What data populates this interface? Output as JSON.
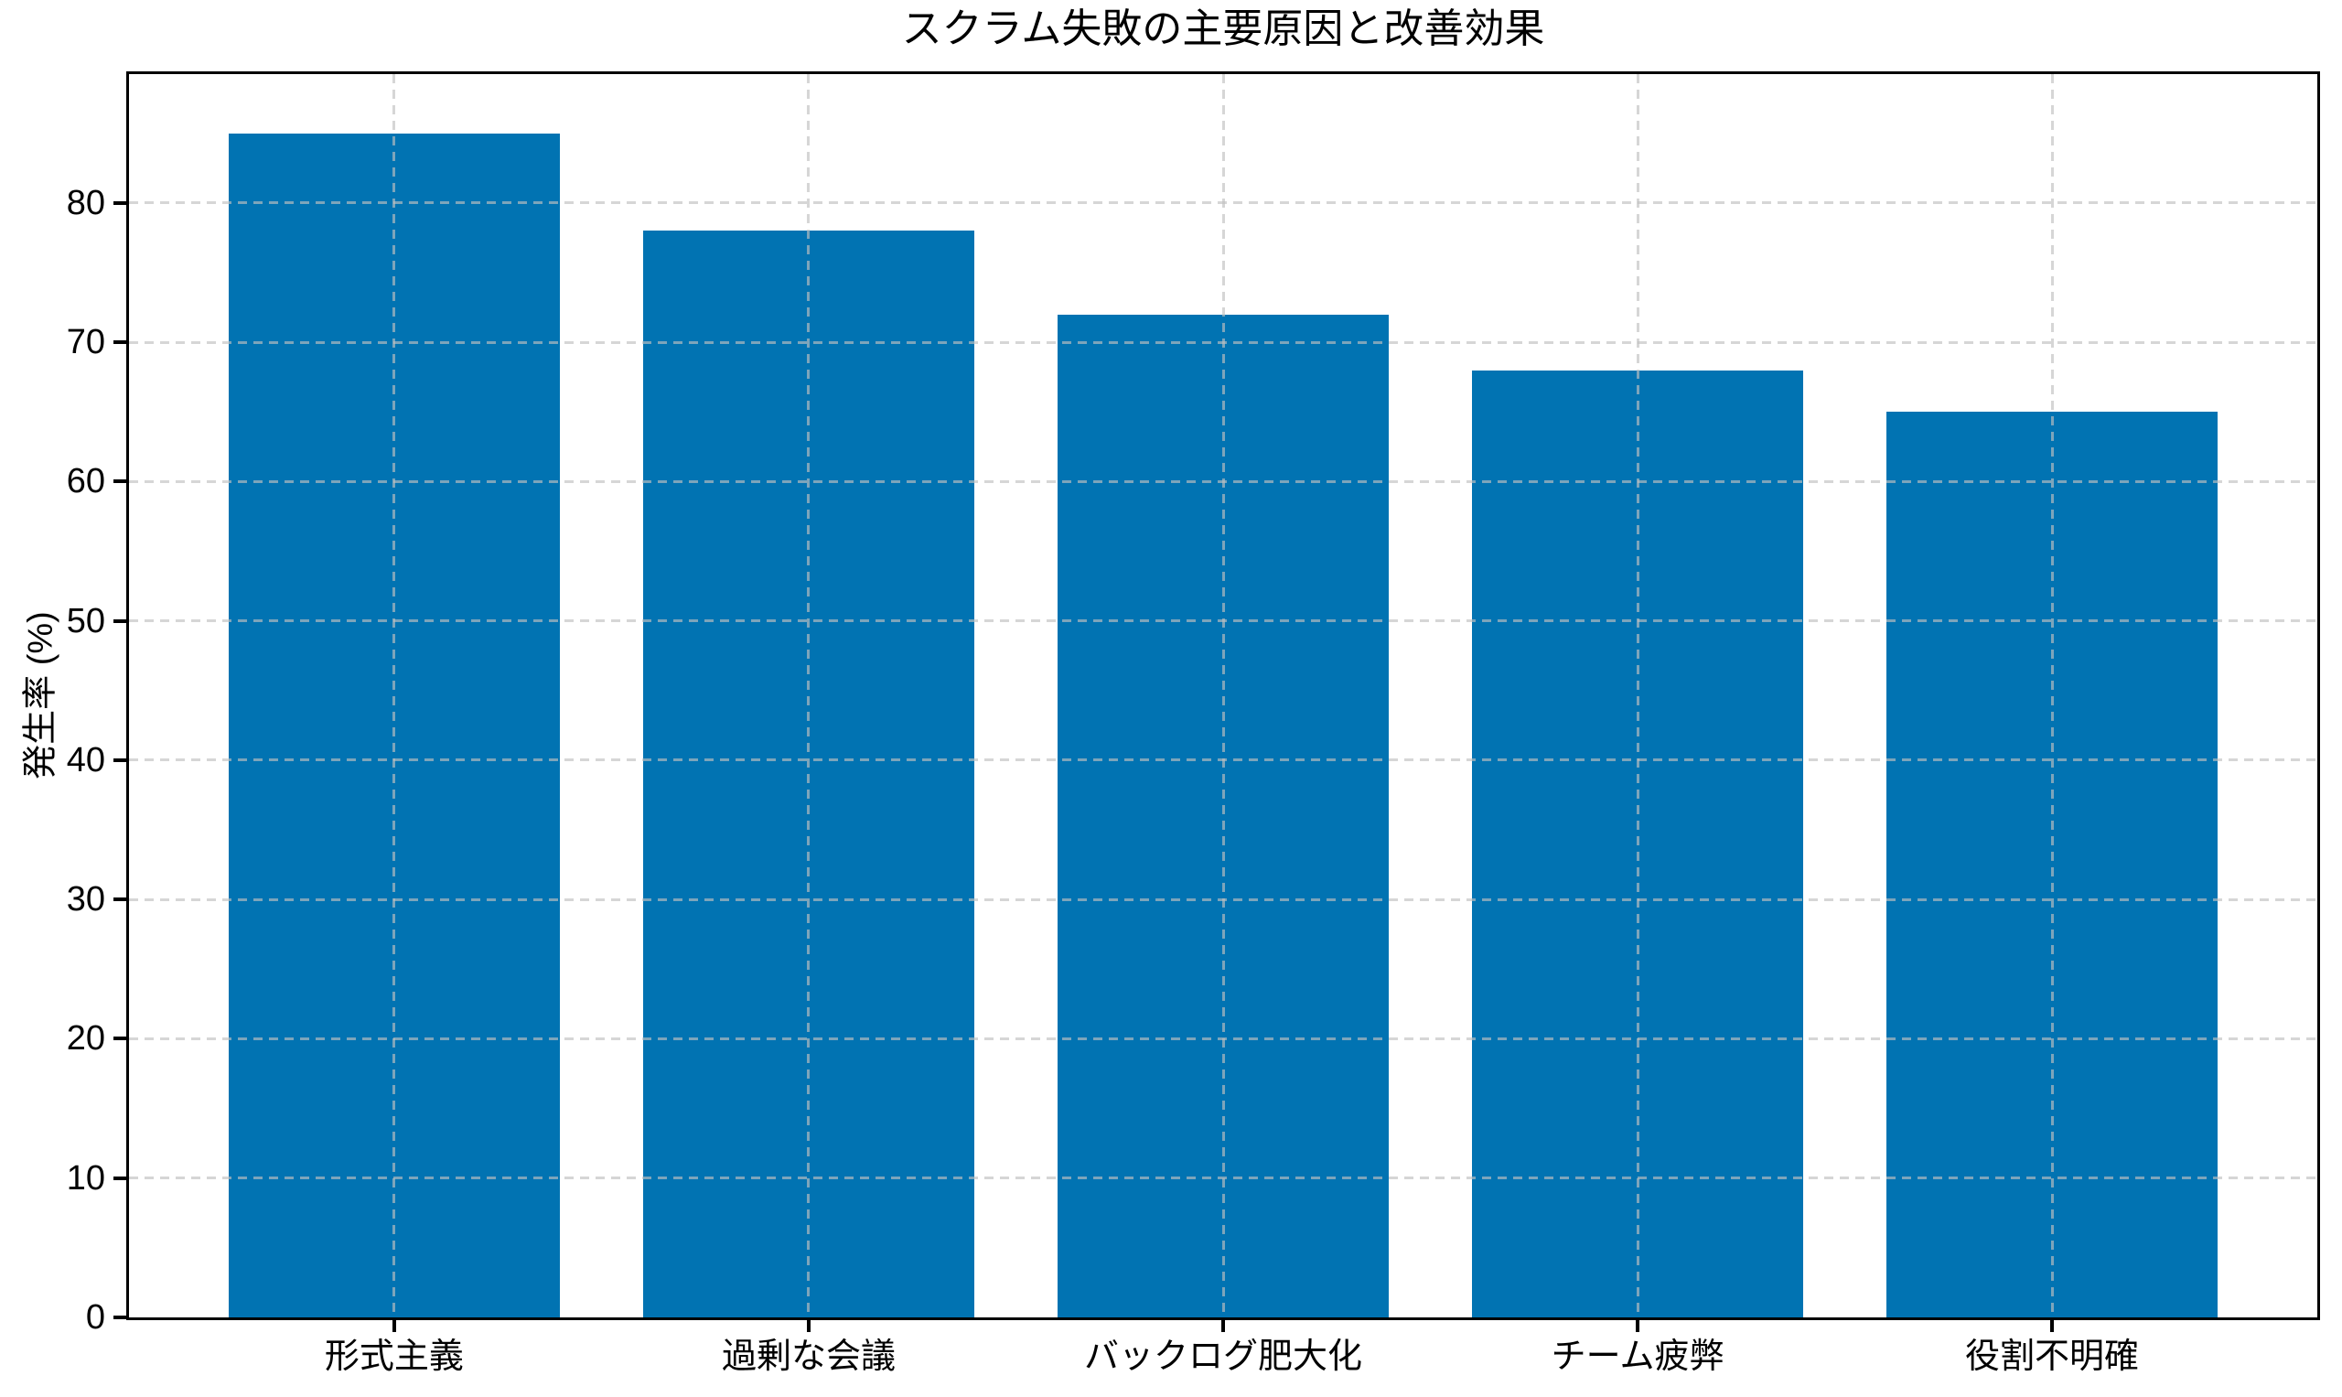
{
  "chart_data": {
    "type": "bar",
    "title": "スクラム失敗の主要原因と改善効果",
    "ylabel": "発生率 (%)",
    "xlabel": "",
    "categories": [
      "形式主義",
      "過剰な会議",
      "バックログ肥大化",
      "チーム疲弊",
      "役割不明確"
    ],
    "values": [
      85,
      78,
      72,
      68,
      65
    ],
    "yticks": [
      0,
      10,
      20,
      30,
      40,
      50,
      60,
      70,
      80
    ],
    "ylim": [
      0,
      89.25
    ],
    "bar_color": "#0173b2",
    "grid_color": "#c0c0c0",
    "axis_color": "#000000",
    "background_color": "#ffffff",
    "grid": "both-dashed-above-bars",
    "legend": null
  }
}
